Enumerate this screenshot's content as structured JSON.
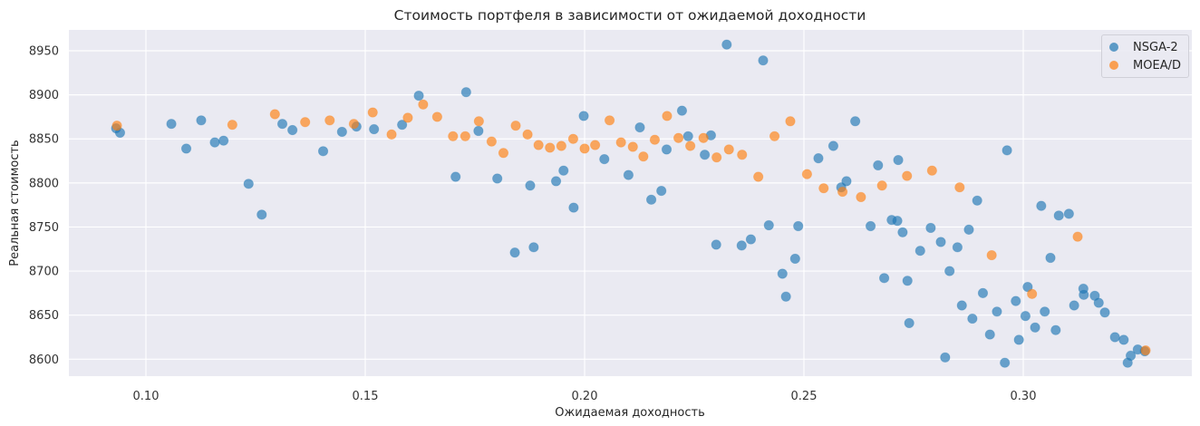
{
  "chart_data": {
    "type": "scatter",
    "title": "Стоимость портфеля в зависимости от ожидаемой доходности",
    "xlabel": "Ожидаемая доходность",
    "ylabel": "Реальная стоимость",
    "xlim": [
      0.0815,
      0.3375
    ],
    "ylim": [
      8578,
      8971
    ],
    "xticks": [
      0.1,
      0.15,
      0.2,
      0.25,
      0.3
    ],
    "xtick_labels": [
      "0.10",
      "0.15",
      "0.20",
      "0.25",
      "0.30"
    ],
    "yticks": [
      8600,
      8650,
      8700,
      8750,
      8800,
      8850,
      8900,
      8950
    ],
    "ytick_labels": [
      "8600",
      "8650",
      "8700",
      "8750",
      "8800",
      "8850",
      "8900",
      "8950"
    ],
    "grid": true,
    "legend_position": "upper right",
    "series": [
      {
        "name": "NSGA-2",
        "color": "#1f77b4",
        "points": [
          [
            0.0932,
            8862
          ],
          [
            0.0941,
            8857
          ],
          [
            0.1058,
            8867
          ],
          [
            0.1092,
            8839
          ],
          [
            0.1126,
            8871
          ],
          [
            0.1157,
            8846
          ],
          [
            0.1177,
            8848
          ],
          [
            0.1234,
            8799
          ],
          [
            0.1264,
            8764
          ],
          [
            0.1311,
            8867
          ],
          [
            0.1334,
            8860
          ],
          [
            0.1404,
            8836
          ],
          [
            0.1447,
            8858
          ],
          [
            0.148,
            8864
          ],
          [
            0.152,
            8861
          ],
          [
            0.1584,
            8866
          ],
          [
            0.1622,
            8899
          ],
          [
            0.1706,
            8807
          ],
          [
            0.173,
            8903
          ],
          [
            0.1758,
            8859
          ],
          [
            0.1801,
            8805
          ],
          [
            0.1841,
            8721
          ],
          [
            0.1876,
            8797
          ],
          [
            0.1884,
            8727
          ],
          [
            0.1935,
            8802
          ],
          [
            0.1952,
            8814
          ],
          [
            0.1975,
            8772
          ],
          [
            0.1998,
            8876
          ],
          [
            0.2045,
            8827
          ],
          [
            0.21,
            8809
          ],
          [
            0.2126,
            8863
          ],
          [
            0.2152,
            8781
          ],
          [
            0.2175,
            8791
          ],
          [
            0.2187,
            8838
          ],
          [
            0.2222,
            8882
          ],
          [
            0.2236,
            8853
          ],
          [
            0.2274,
            8832
          ],
          [
            0.2288,
            8854
          ],
          [
            0.23,
            8730
          ],
          [
            0.2324,
            8957
          ],
          [
            0.2358,
            8729
          ],
          [
            0.2379,
            8736
          ],
          [
            0.2407,
            8939
          ],
          [
            0.242,
            8752
          ],
          [
            0.2451,
            8697
          ],
          [
            0.2459,
            8671
          ],
          [
            0.248,
            8714
          ],
          [
            0.2487,
            8751
          ],
          [
            0.2533,
            8828
          ],
          [
            0.2567,
            8842
          ],
          [
            0.2585,
            8795
          ],
          [
            0.2597,
            8802
          ],
          [
            0.2617,
            8870
          ],
          [
            0.2652,
            8751
          ],
          [
            0.2669,
            8820
          ],
          [
            0.2683,
            8692
          ],
          [
            0.27,
            8758
          ],
          [
            0.2713,
            8757
          ],
          [
            0.2715,
            8826
          ],
          [
            0.2725,
            8744
          ],
          [
            0.2736,
            8689
          ],
          [
            0.274,
            8641
          ],
          [
            0.2765,
            8723
          ],
          [
            0.2789,
            8749
          ],
          [
            0.2812,
            8733
          ],
          [
            0.2822,
            8602
          ],
          [
            0.2832,
            8700
          ],
          [
            0.285,
            8727
          ],
          [
            0.286,
            8661
          ],
          [
            0.2876,
            8747
          ],
          [
            0.2884,
            8646
          ],
          [
            0.2895,
            8780
          ],
          [
            0.2908,
            8675
          ],
          [
            0.2924,
            8628
          ],
          [
            0.294,
            8654
          ],
          [
            0.2958,
            8596
          ],
          [
            0.2963,
            8837
          ],
          [
            0.2983,
            8666
          ],
          [
            0.299,
            8622
          ],
          [
            0.3005,
            8649
          ],
          [
            0.301,
            8682
          ],
          [
            0.3027,
            8636
          ],
          [
            0.3041,
            8774
          ],
          [
            0.3049,
            8654
          ],
          [
            0.3062,
            8715
          ],
          [
            0.3074,
            8633
          ],
          [
            0.3081,
            8763
          ],
          [
            0.3104,
            8765
          ],
          [
            0.3116,
            8661
          ],
          [
            0.3137,
            8680
          ],
          [
            0.3138,
            8673
          ],
          [
            0.3163,
            8672
          ],
          [
            0.3172,
            8664
          ],
          [
            0.3186,
            8653
          ],
          [
            0.3209,
            8625
          ],
          [
            0.3229,
            8622
          ],
          [
            0.3238,
            8596
          ],
          [
            0.3245,
            8604
          ],
          [
            0.3261,
            8611
          ],
          [
            0.3277,
            8609
          ]
        ]
      },
      {
        "name": "MOEA/D",
        "color": "#ff7f0e",
        "points": [
          [
            0.0934,
            8865
          ],
          [
            0.1197,
            8866
          ],
          [
            0.1294,
            8878
          ],
          [
            0.1363,
            8869
          ],
          [
            0.1419,
            8871
          ],
          [
            0.1474,
            8867
          ],
          [
            0.1517,
            8880
          ],
          [
            0.156,
            8855
          ],
          [
            0.1597,
            8874
          ],
          [
            0.1632,
            8889
          ],
          [
            0.1664,
            8875
          ],
          [
            0.17,
            8853
          ],
          [
            0.1728,
            8853
          ],
          [
            0.1759,
            8870
          ],
          [
            0.1788,
            8847
          ],
          [
            0.1815,
            8834
          ],
          [
            0.1843,
            8865
          ],
          [
            0.187,
            8855
          ],
          [
            0.1895,
            8843
          ],
          [
            0.1921,
            8840
          ],
          [
            0.1947,
            8842
          ],
          [
            0.1974,
            8850
          ],
          [
            0.2,
            8839
          ],
          [
            0.2024,
            8843
          ],
          [
            0.2057,
            8871
          ],
          [
            0.2083,
            8846
          ],
          [
            0.211,
            8841
          ],
          [
            0.2134,
            8830
          ],
          [
            0.216,
            8849
          ],
          [
            0.2188,
            8876
          ],
          [
            0.2214,
            8851
          ],
          [
            0.2241,
            8842
          ],
          [
            0.2271,
            8851
          ],
          [
            0.2301,
            8829
          ],
          [
            0.2329,
            8838
          ],
          [
            0.2359,
            8832
          ],
          [
            0.2396,
            8807
          ],
          [
            0.2433,
            8853
          ],
          [
            0.2469,
            8870
          ],
          [
            0.2507,
            8810
          ],
          [
            0.2545,
            8794
          ],
          [
            0.2588,
            8790
          ],
          [
            0.263,
            8784
          ],
          [
            0.2678,
            8797
          ],
          [
            0.2735,
            8808
          ],
          [
            0.2792,
            8814
          ],
          [
            0.2855,
            8795
          ],
          [
            0.2928,
            8718
          ],
          [
            0.302,
            8674
          ],
          [
            0.3124,
            8739
          ],
          [
            0.3279,
            8610
          ]
        ]
      }
    ]
  },
  "legend": {
    "items": [
      {
        "label": "NSGA-2",
        "color": "#1f77b4"
      },
      {
        "label": "MOEA/D",
        "color": "#ff7f0e"
      }
    ]
  }
}
